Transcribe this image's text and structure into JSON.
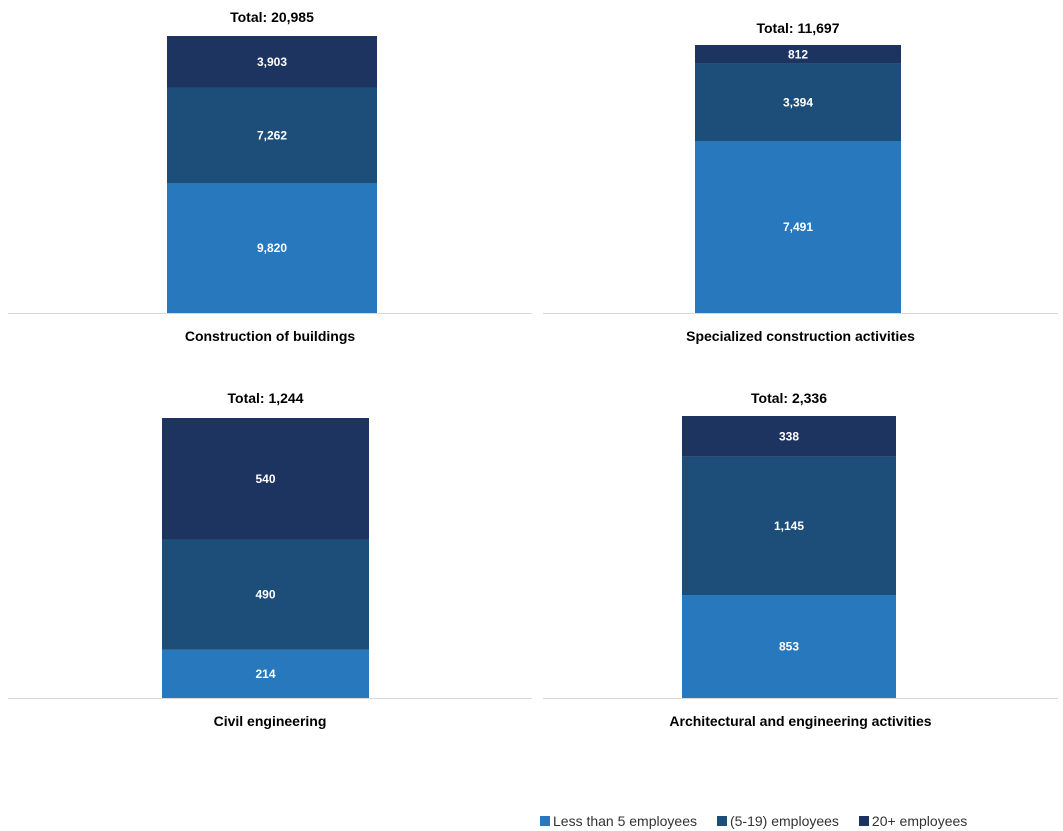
{
  "chart_data": [
    {
      "type": "bar",
      "stacked": true,
      "categories": [
        "Construction of buildings"
      ],
      "total_label": "Total: 20,985",
      "series": [
        {
          "name": "Less than 5 employees",
          "values": [
            9820
          ],
          "labels": [
            "9,820"
          ]
        },
        {
          "name": "(5-19) employees",
          "values": [
            7262
          ],
          "labels": [
            "7,262"
          ]
        },
        {
          "name": "20+  employees",
          "values": [
            3903
          ],
          "labels": [
            "3,903"
          ]
        }
      ]
    },
    {
      "type": "bar",
      "stacked": true,
      "categories": [
        "Specialized construction activities"
      ],
      "total_label": "Total: 11,697",
      "series": [
        {
          "name": "Less than 5 employees",
          "values": [
            7491
          ],
          "labels": [
            "7,491"
          ]
        },
        {
          "name": "(5-19) employees",
          "values": [
            3394
          ],
          "labels": [
            "3,394"
          ]
        },
        {
          "name": "20+  employees",
          "values": [
            812
          ],
          "labels": [
            "812"
          ]
        }
      ]
    },
    {
      "type": "bar",
      "stacked": true,
      "categories": [
        "Civil engineering"
      ],
      "total_label": "Total: 1,244",
      "series": [
        {
          "name": "Less than 5 employees",
          "values": [
            214
          ],
          "labels": [
            "214"
          ]
        },
        {
          "name": "(5-19) employees",
          "values": [
            490
          ],
          "labels": [
            "490"
          ]
        },
        {
          "name": "20+  employees",
          "values": [
            540
          ],
          "labels": [
            "540"
          ]
        }
      ]
    },
    {
      "type": "bar",
      "stacked": true,
      "categories": [
        "Architectural and engineering activities"
      ],
      "total_label": "Total: 2,336",
      "series": [
        {
          "name": "Less than 5 employees",
          "values": [
            853
          ],
          "labels": [
            "853"
          ]
        },
        {
          "name": "(5-19) employees",
          "values": [
            1145
          ],
          "labels": [
            "1,145"
          ]
        },
        {
          "name": "20+  employees",
          "values": [
            338
          ],
          "labels": [
            "338"
          ]
        }
      ]
    }
  ],
  "legend": {
    "position": "bottom-right",
    "items": [
      {
        "label": "Less than 5 employees",
        "color": "#2878BE"
      },
      {
        "label": "(5-19) employees",
        "color": "#1D4E7A"
      },
      {
        "label": "20+  employees",
        "color": "#1D3461"
      }
    ]
  },
  "colors": [
    "#2878BE",
    "#1D4E7A",
    "#1D3461"
  ]
}
